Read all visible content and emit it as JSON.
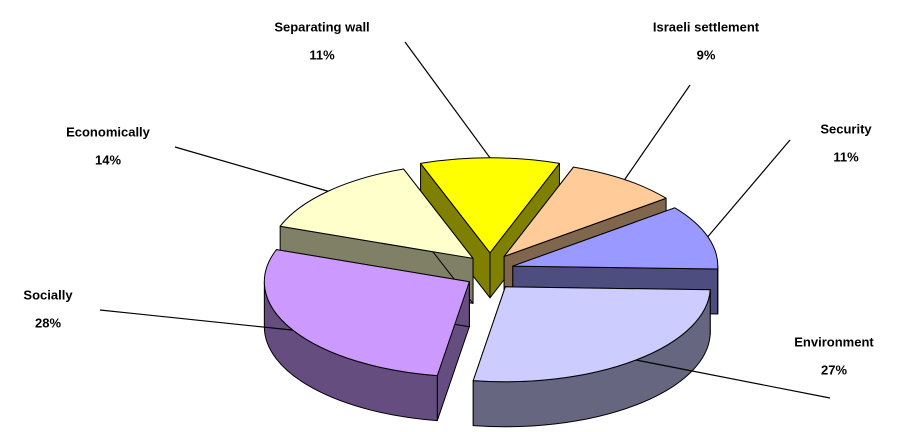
{
  "chart_data": {
    "type": "pie3d",
    "categories": [
      "Separating wall",
      "Israeli settlement",
      "Security",
      "Environment",
      "Socially",
      "Economically"
    ],
    "values": [
      11,
      9,
      11,
      27,
      28,
      14
    ],
    "value_labels": [
      "11%",
      "9%",
      "11%",
      "27%",
      "28%",
      "14%"
    ],
    "colors": [
      "#ffff00",
      "#ffcc99",
      "#9999ff",
      "#ccccff",
      "#cc99ff",
      "#ffffcc"
    ]
  }
}
